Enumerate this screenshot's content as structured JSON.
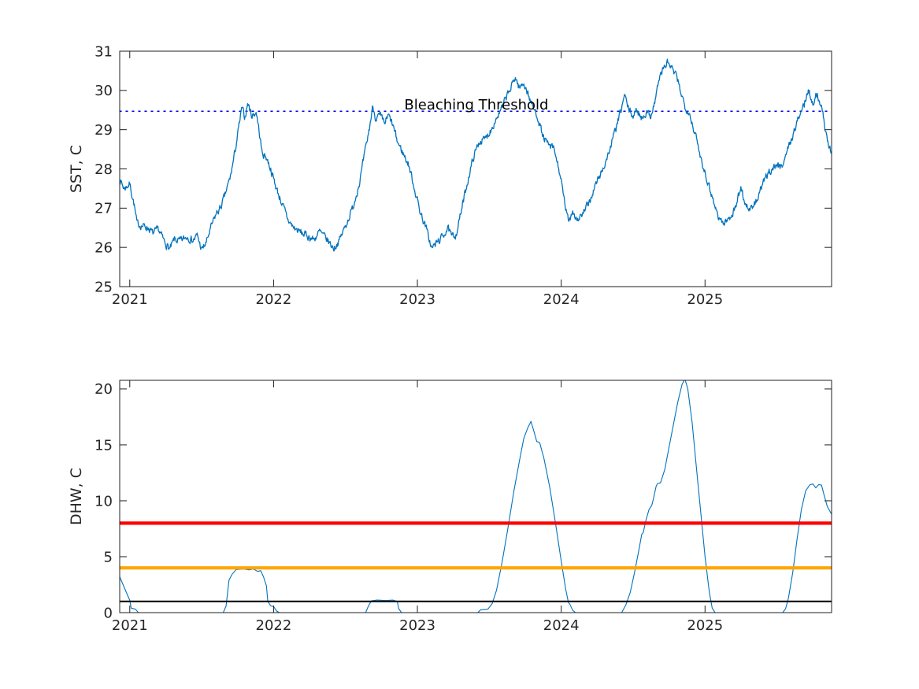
{
  "figure": {
    "background": "#ffffff",
    "axis_color": "#1f1f1f",
    "tick_label_color": "#262626",
    "series_blue": "#0072BD"
  },
  "chart_data": [
    {
      "id": "sst",
      "type": "line",
      "ylabel": "SST, C",
      "ylim": [
        25,
        31
      ],
      "xlim": [
        2020.93,
        2025.88
      ],
      "yticks": [
        25,
        26,
        27,
        28,
        29,
        30,
        31
      ],
      "xticks": [
        2021,
        2022,
        2023,
        2024,
        2025
      ],
      "grid": false,
      "annotation": {
        "text": "Bleaching Threshold",
        "x": 2023.41,
        "y": 29.52,
        "color": "#000000",
        "font_px": 18
      },
      "series": [
        {
          "name": "bleaching-threshold",
          "y_const": 29.47,
          "color": "#0000ee",
          "style": "dotted",
          "width": 1.4
        },
        {
          "name": "sst-daily",
          "color": "#0072BD",
          "width": 1.3,
          "noise_amplitude": 0.09,
          "x": [
            2020.93,
            2020.96,
            2021.0,
            2021.03,
            2021.05,
            2021.09,
            2021.13,
            2021.16,
            2021.2,
            2021.24,
            2021.28,
            2021.31,
            2021.35,
            2021.4,
            2021.44,
            2021.47,
            2021.5,
            2021.53,
            2021.56,
            2021.6,
            2021.63,
            2021.66,
            2021.7,
            2021.73,
            2021.76,
            2021.78,
            2021.8,
            2021.82,
            2021.85,
            2021.88,
            2021.9,
            2021.92,
            2021.95,
            2021.98,
            2022.02,
            2022.06,
            2022.1,
            2022.14,
            2022.18,
            2022.23,
            2022.28,
            2022.32,
            2022.37,
            2022.42,
            2022.46,
            2022.5,
            2022.55,
            2022.6,
            2022.63,
            2022.66,
            2022.69,
            2022.71,
            2022.74,
            2022.77,
            2022.8,
            2022.83,
            2022.86,
            2022.9,
            2022.94,
            2022.98,
            2023.02,
            2023.06,
            2023.1,
            2023.13,
            2023.17,
            2023.21,
            2023.24,
            2023.27,
            2023.31,
            2023.35,
            2023.39,
            2023.43,
            2023.47,
            2023.51,
            2023.55,
            2023.59,
            2023.62,
            2023.65,
            2023.68,
            2023.71,
            2023.74,
            2023.77,
            2023.8,
            2023.84,
            2023.87,
            2023.91,
            2023.95,
            2023.99,
            2024.02,
            2024.05,
            2024.08,
            2024.11,
            2024.15,
            2024.19,
            2024.24,
            2024.29,
            2024.33,
            2024.37,
            2024.41,
            2024.44,
            2024.47,
            2024.5,
            2024.53,
            2024.56,
            2024.59,
            2024.62,
            2024.65,
            2024.68,
            2024.71,
            2024.74,
            2024.77,
            2024.8,
            2024.83,
            2024.86,
            2024.89,
            2024.93,
            2024.97,
            2025.01,
            2025.05,
            2025.09,
            2025.13,
            2025.17,
            2025.21,
            2025.25,
            2025.28,
            2025.32,
            2025.36,
            2025.4,
            2025.45,
            2025.49,
            2025.53,
            2025.57,
            2025.61,
            2025.65,
            2025.69,
            2025.72,
            2025.75,
            2025.78,
            2025.81,
            2025.84,
            2025.88
          ],
          "y": [
            27.75,
            27.5,
            27.62,
            27.1,
            26.6,
            26.55,
            26.5,
            26.35,
            26.45,
            26.15,
            25.95,
            26.2,
            26.15,
            26.28,
            26.18,
            26.3,
            25.93,
            26.1,
            26.45,
            26.85,
            27.0,
            27.3,
            27.8,
            28.4,
            29.1,
            29.55,
            29.3,
            29.68,
            29.35,
            29.45,
            28.95,
            28.4,
            28.3,
            28.0,
            27.5,
            27.1,
            26.7,
            26.5,
            26.4,
            26.3,
            26.2,
            26.4,
            26.2,
            25.97,
            26.2,
            26.55,
            27.0,
            27.7,
            28.3,
            28.9,
            29.6,
            29.3,
            29.35,
            29.15,
            29.35,
            29.1,
            28.7,
            28.4,
            28.1,
            27.5,
            26.9,
            26.5,
            25.97,
            26.1,
            26.25,
            26.5,
            26.25,
            26.35,
            27.0,
            27.7,
            28.3,
            28.7,
            28.75,
            29.0,
            29.3,
            29.55,
            29.85,
            30.05,
            30.35,
            30.05,
            30.2,
            29.9,
            29.6,
            29.3,
            28.85,
            28.6,
            28.5,
            27.9,
            27.2,
            26.65,
            26.95,
            26.7,
            26.85,
            27.1,
            27.6,
            28.0,
            28.4,
            28.9,
            29.4,
            29.88,
            29.5,
            29.35,
            29.5,
            29.3,
            29.45,
            29.35,
            29.7,
            30.3,
            30.55,
            30.72,
            30.55,
            30.35,
            30.0,
            29.6,
            29.45,
            28.9,
            28.3,
            27.8,
            27.3,
            26.8,
            26.6,
            26.75,
            27.0,
            27.55,
            27.1,
            26.95,
            27.2,
            27.6,
            27.95,
            28.1,
            28.05,
            28.45,
            28.85,
            29.3,
            29.65,
            30.02,
            29.7,
            29.92,
            29.55,
            28.95,
            28.33
          ]
        }
      ]
    },
    {
      "id": "dhw",
      "type": "line",
      "ylabel": "DHW, C",
      "ylim": [
        0,
        20.77
      ],
      "xlim": [
        2020.93,
        2025.88
      ],
      "yticks": [
        0,
        5,
        10,
        15,
        20
      ],
      "xticks": [
        2021,
        2022,
        2023,
        2024,
        2025
      ],
      "grid": false,
      "series": [
        {
          "name": "dhw-curve",
          "color": "#0072BD",
          "width": 1.1,
          "x": [
            2020.93,
            2020.97,
            2021.0,
            2021.01,
            2021.04,
            2021.06,
            2021.65,
            2021.67,
            2021.69,
            2021.71,
            2021.74,
            2021.79,
            2021.83,
            2021.86,
            2021.89,
            2021.91,
            2021.93,
            2021.95,
            2021.96,
            2021.98,
            2022.0,
            2022.02,
            2022.04,
            2022.64,
            2022.66,
            2022.68,
            2022.72,
            2022.78,
            2022.83,
            2022.86,
            2022.87,
            2022.89,
            2023.42,
            2023.44,
            2023.49,
            2023.52,
            2023.55,
            2023.59,
            2023.63,
            2023.67,
            2023.71,
            2023.74,
            2023.77,
            2023.79,
            2023.81,
            2023.83,
            2023.85,
            2023.88,
            2023.92,
            2023.96,
            2024.0,
            2024.03,
            2024.05,
            2024.06,
            2024.08,
            2024.1,
            2024.42,
            2024.45,
            2024.48,
            2024.51,
            2024.54,
            2024.56,
            2024.57,
            2024.59,
            2024.61,
            2024.63,
            2024.64,
            2024.66,
            2024.67,
            2024.69,
            2024.72,
            2024.75,
            2024.78,
            2024.81,
            2024.84,
            2024.86,
            2024.88,
            2024.91,
            2024.94,
            2024.97,
            2025.0,
            2025.03,
            2025.05,
            2025.07,
            2025.54,
            2025.56,
            2025.58,
            2025.61,
            2025.64,
            2025.67,
            2025.7,
            2025.73,
            2025.75,
            2025.77,
            2025.79,
            2025.81,
            2025.83,
            2025.85,
            2025.88
          ],
          "y": [
            3.2,
            2.0,
            1.1,
            0.4,
            0.3,
            0,
            0,
            0.6,
            2.9,
            3.4,
            3.85,
            3.9,
            3.82,
            3.9,
            3.68,
            3.75,
            3.2,
            2.4,
            1.0,
            0.6,
            0.55,
            0.15,
            0,
            0,
            0.6,
            1.05,
            1.12,
            1.08,
            1.12,
            1.0,
            0.35,
            0,
            0,
            0.25,
            0.3,
            0.8,
            2.0,
            4.6,
            7.6,
            10.8,
            13.6,
            15.6,
            16.6,
            17.1,
            16.2,
            15.3,
            15.2,
            13.8,
            11.2,
            8.0,
            4.6,
            2.2,
            0.9,
            0.75,
            0.2,
            0,
            0,
            0.7,
            1.8,
            3.6,
            5.6,
            7.0,
            7.15,
            8.3,
            9.2,
            9.6,
            10.1,
            11.3,
            11.55,
            11.6,
            12.8,
            14.8,
            16.8,
            18.8,
            20.4,
            20.9,
            20.0,
            17.0,
            13.0,
            9.0,
            5.0,
            1.8,
            0.4,
            0,
            0,
            0.35,
            1.3,
            3.6,
            6.6,
            9.2,
            10.9,
            11.45,
            11.5,
            11.15,
            11.45,
            11.4,
            10.4,
            9.5,
            8.8
          ]
        },
        {
          "name": "threshold-1",
          "y_const": 1,
          "color": "#000000",
          "width": 2
        },
        {
          "name": "threshold-4",
          "y_const": 4,
          "color": "#FFA500",
          "width": 4.2
        },
        {
          "name": "threshold-8",
          "y_const": 8,
          "color": "#FF0000",
          "width": 4.2
        }
      ]
    }
  ]
}
